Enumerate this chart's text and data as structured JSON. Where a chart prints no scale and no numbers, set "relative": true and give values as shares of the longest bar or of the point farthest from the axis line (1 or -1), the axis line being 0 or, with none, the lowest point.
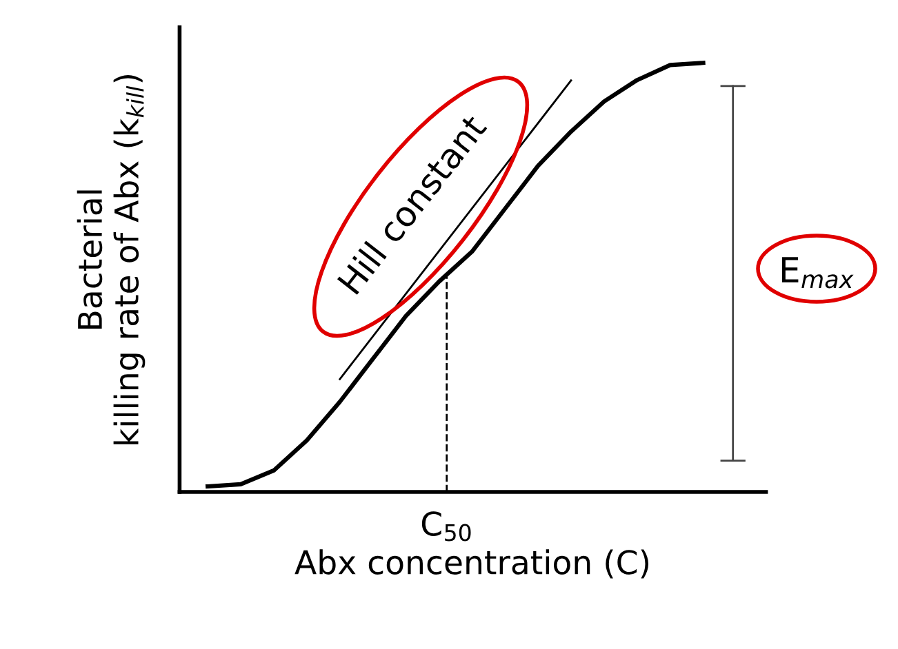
{
  "chart_data": {
    "type": "line",
    "relative": true,
    "xlabel": "Abx concentration (C)",
    "ylabel": "Bacterial\nkilling rate of Abx (k$_{kill}$)",
    "categories": [
      null,
      null,
      null,
      null,
      null,
      null,
      null,
      null,
      null,
      null,
      null,
      null,
      null,
      null,
      null,
      null
    ],
    "series": [
      {
        "color": "#000000",
        "values": [
          0.013,
          0.018,
          0.05,
          0.12,
          0.21,
          0.31,
          0.41,
          0.49,
          0.56,
          0.66,
          0.76,
          0.84,
          0.91,
          0.96,
          0.995,
          1.0
        ]
      },
      {
        "type": "line",
        "color": "#000000",
        "values": [
          null,
          null,
          null,
          null,
          0.263,
          null,
          null,
          null,
          null,
          null,
          null,
          0.959,
          null,
          null,
          null,
          null
        ]
      }
    ],
    "annotations": [
      "Hill constant",
      "E$_{max}$",
      "C$_{50}$"
    ],
    "legend": false
  }
}
